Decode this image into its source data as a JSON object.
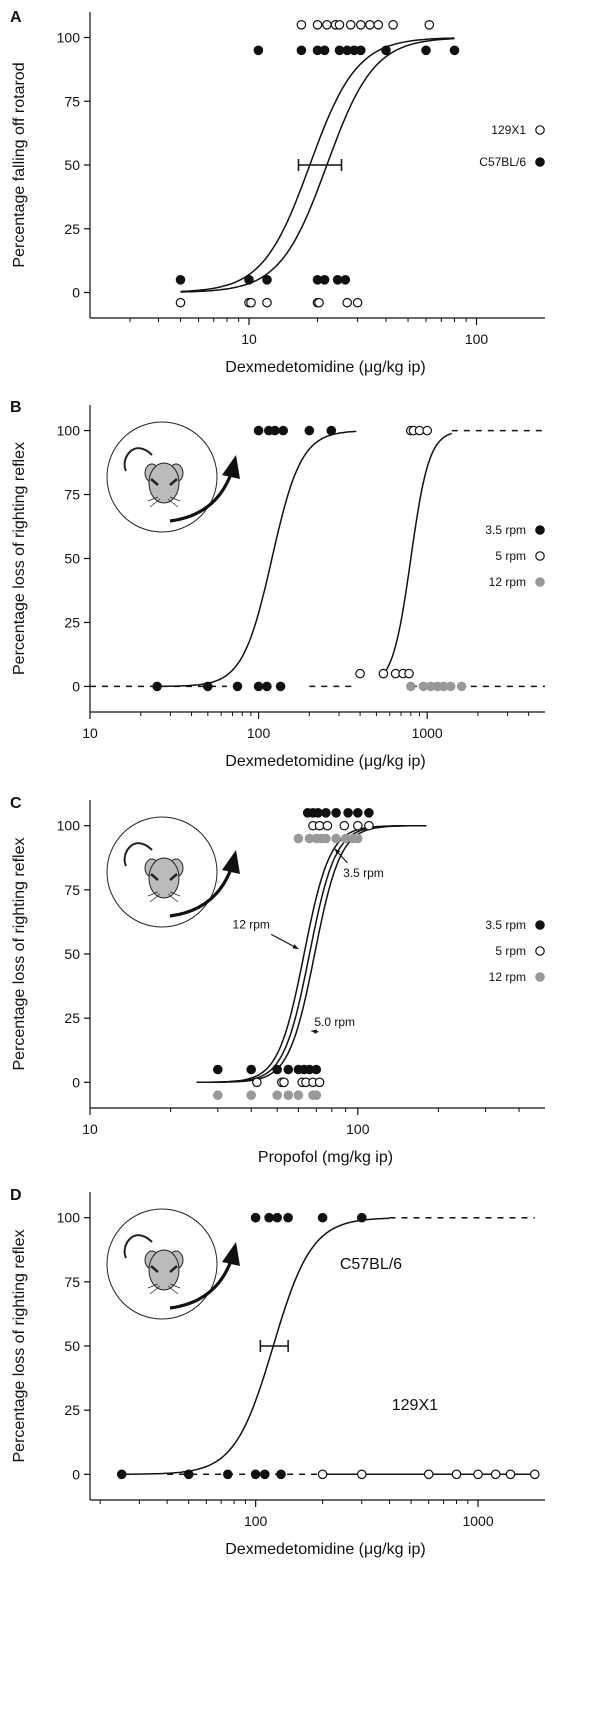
{
  "chart_data": [
    {
      "id": "A",
      "type": "scatter",
      "panel_label": "A",
      "xlabel": "Dexmedetomidine (μg/kg ip)",
      "ylabel": "Percentage falling off rotarod",
      "x_scale": "log",
      "xlim": [
        2,
        200
      ],
      "ylim": [
        -10,
        110
      ],
      "x_ticks": [
        10,
        100
      ],
      "y_ticks": [
        0,
        25,
        50,
        75,
        100
      ],
      "series": [
        {
          "name": "129X1",
          "marker": "open",
          "color": "#111111",
          "points": [
            {
              "x": 5,
              "y": -4
            },
            {
              "x": 10,
              "y": -4
            },
            {
              "x": 10.2,
              "y": -4
            },
            {
              "x": 12,
              "y": -4
            },
            {
              "x": 20,
              "y": -4
            },
            {
              "x": 20.3,
              "y": -4
            },
            {
              "x": 27,
              "y": -4
            },
            {
              "x": 30,
              "y": -4
            },
            {
              "x": 17,
              "y": 105
            },
            {
              "x": 20,
              "y": 105
            },
            {
              "x": 22,
              "y": 105
            },
            {
              "x": 24,
              "y": 105
            },
            {
              "x": 25,
              "y": 105
            },
            {
              "x": 28,
              "y": 105
            },
            {
              "x": 31,
              "y": 105
            },
            {
              "x": 34,
              "y": 105
            },
            {
              "x": 37,
              "y": 105
            },
            {
              "x": 43,
              "y": 105
            },
            {
              "x": 62,
              "y": 105
            }
          ]
        },
        {
          "name": "C57BL/6",
          "marker": "filled",
          "color": "#111111",
          "points": [
            {
              "x": 5,
              "y": 5
            },
            {
              "x": 10,
              "y": 5
            },
            {
              "x": 12,
              "y": 5
            },
            {
              "x": 20,
              "y": 5
            },
            {
              "x": 21.5,
              "y": 5
            },
            {
              "x": 24.5,
              "y": 5
            },
            {
              "x": 26.5,
              "y": 5
            },
            {
              "x": 11,
              "y": 95
            },
            {
              "x": 17,
              "y": 95
            },
            {
              "x": 20,
              "y": 95
            },
            {
              "x": 21.5,
              "y": 95
            },
            {
              "x": 25,
              "y": 95
            },
            {
              "x": 27,
              "y": 95
            },
            {
              "x": 29,
              "y": 95
            },
            {
              "x": 31,
              "y": 95
            },
            {
              "x": 40,
              "y": 95
            },
            {
              "x": 60,
              "y": 95
            },
            {
              "x": 80,
              "y": 95
            }
          ]
        }
      ],
      "curves": [
        {
          "ec50": 18.5,
          "hill": 4.2,
          "x_from": 5,
          "x_to": 80,
          "style": "solid"
        },
        {
          "ec50": 22,
          "hill": 4.2,
          "x_from": 5,
          "x_to": 80,
          "style": "solid"
        }
      ],
      "error_bars": [
        {
          "x_low": 16.5,
          "x_high": 25.5,
          "y": 50
        }
      ],
      "legend": {
        "placement": "right",
        "entries": [
          {
            "label": "129X1",
            "marker": "open"
          },
          {
            "label": "C57BL/6",
            "marker": "filled"
          }
        ]
      },
      "annotations": [],
      "mouse_icon": false
    },
    {
      "id": "B",
      "type": "scatter",
      "panel_label": "B",
      "xlabel": "Dexmedetomidine (μg/kg ip)",
      "ylabel": "Percentage loss of righting reflex",
      "x_scale": "log",
      "xlim": [
        10,
        5000
      ],
      "ylim": [
        -10,
        110
      ],
      "x_ticks": [
        10,
        100,
        1000
      ],
      "y_ticks": [
        0,
        25,
        50,
        75,
        100
      ],
      "series": [
        {
          "name": "3.5 rpm",
          "marker": "filled",
          "color": "#111111",
          "points": [
            {
              "x": 25,
              "y": 0
            },
            {
              "x": 50,
              "y": 0
            },
            {
              "x": 75,
              "y": 0
            },
            {
              "x": 100,
              "y": 0
            },
            {
              "x": 112,
              "y": 0
            },
            {
              "x": 135,
              "y": 0
            },
            {
              "x": 100,
              "y": 100
            },
            {
              "x": 115,
              "y": 100
            },
            {
              "x": 125,
              "y": 100
            },
            {
              "x": 140,
              "y": 100
            },
            {
              "x": 200,
              "y": 100
            },
            {
              "x": 270,
              "y": 100
            }
          ]
        },
        {
          "name": "5 rpm",
          "marker": "open",
          "color": "#111111",
          "points": [
            {
              "x": 400,
              "y": 5
            },
            {
              "x": 550,
              "y": 5
            },
            {
              "x": 650,
              "y": 5
            },
            {
              "x": 720,
              "y": 5
            },
            {
              "x": 780,
              "y": 5
            },
            {
              "x": 800,
              "y": 100
            },
            {
              "x": 830,
              "y": 100
            },
            {
              "x": 900,
              "y": 100
            },
            {
              "x": 1000,
              "y": 100
            }
          ]
        },
        {
          "name": "12 rpm",
          "marker": "filled",
          "color": "#999999",
          "points": [
            {
              "x": 800,
              "y": 0
            },
            {
              "x": 950,
              "y": 0
            },
            {
              "x": 1050,
              "y": 0
            },
            {
              "x": 1150,
              "y": 0
            },
            {
              "x": 1250,
              "y": 0
            },
            {
              "x": 1380,
              "y": 0
            },
            {
              "x": 1600,
              "y": 0
            }
          ]
        }
      ],
      "curves": [
        {
          "ec50": 120,
          "hill": 5,
          "x_from": 25,
          "x_to": 380,
          "style": "solid"
        },
        {
          "ec50": 800,
          "hill": 8,
          "x_from": 560,
          "x_to": 1400,
          "style": "solid"
        },
        {
          "ec50": 0,
          "hill": 0,
          "x_from": 10,
          "x_to": 65,
          "style": "dashed",
          "const": 0
        },
        {
          "ec50": 0,
          "hill": 0,
          "x_from": 200,
          "x_to": 380,
          "style": "dashed",
          "const": 0
        },
        {
          "ec50": 0,
          "hill": 0,
          "x_from": 800,
          "x_to": 5000,
          "style": "dashed",
          "const": 0
        },
        {
          "ec50": 0,
          "hill": 0,
          "x_from": 1400,
          "x_to": 5000,
          "style": "dashed",
          "const": 100
        }
      ],
      "error_bars": [],
      "legend": {
        "placement": "right",
        "entries": [
          {
            "label": "3.5 rpm",
            "marker": "filled"
          },
          {
            "label": "5 rpm",
            "marker": "open"
          },
          {
            "label": "12 rpm",
            "marker": "grey"
          }
        ]
      },
      "annotations": [],
      "mouse_icon": true
    },
    {
      "id": "C",
      "type": "scatter",
      "panel_label": "C",
      "xlabel": "Propofol (mg/kg ip)",
      "ylabel": "Percentage loss of righting reflex",
      "x_scale": "log",
      "xlim": [
        10,
        500
      ],
      "ylim": [
        -10,
        110
      ],
      "x_ticks": [
        10,
        100
      ],
      "y_ticks": [
        0,
        25,
        50,
        75,
        100
      ],
      "series": [
        {
          "name": "3.5 rpm",
          "marker": "filled",
          "color": "#111111",
          "points": [
            {
              "x": 30,
              "y": 5
            },
            {
              "x": 40,
              "y": 5
            },
            {
              "x": 50,
              "y": 5
            },
            {
              "x": 55,
              "y": 5
            },
            {
              "x": 60,
              "y": 5
            },
            {
              "x": 63,
              "y": 5
            },
            {
              "x": 66,
              "y": 5
            },
            {
              "x": 70,
              "y": 5
            },
            {
              "x": 65,
              "y": 105
            },
            {
              "x": 68,
              "y": 105
            },
            {
              "x": 71,
              "y": 105
            },
            {
              "x": 76,
              "y": 105
            },
            {
              "x": 83,
              "y": 105
            },
            {
              "x": 92,
              "y": 105
            },
            {
              "x": 100,
              "y": 105
            },
            {
              "x": 110,
              "y": 105
            }
          ]
        },
        {
          "name": "5 rpm",
          "marker": "open",
          "color": "#111111",
          "points": [
            {
              "x": 42,
              "y": 0
            },
            {
              "x": 52,
              "y": 0
            },
            {
              "x": 53,
              "y": 0
            },
            {
              "x": 62,
              "y": 0
            },
            {
              "x": 64,
              "y": 0
            },
            {
              "x": 68,
              "y": 0
            },
            {
              "x": 72,
              "y": 0
            },
            {
              "x": 68,
              "y": 100
            },
            {
              "x": 72,
              "y": 100
            },
            {
              "x": 77,
              "y": 100
            },
            {
              "x": 89,
              "y": 100
            },
            {
              "x": 100,
              "y": 100
            },
            {
              "x": 110,
              "y": 100
            }
          ]
        },
        {
          "name": "12 rpm",
          "marker": "filled",
          "color": "#999999",
          "points": [
            {
              "x": 30,
              "y": -5
            },
            {
              "x": 40,
              "y": -5
            },
            {
              "x": 50,
              "y": -5
            },
            {
              "x": 55,
              "y": -5
            },
            {
              "x": 60,
              "y": -5
            },
            {
              "x": 68,
              "y": -5
            },
            {
              "x": 70,
              "y": -5
            },
            {
              "x": 60,
              "y": 95
            },
            {
              "x": 66,
              "y": 95
            },
            {
              "x": 70,
              "y": 95
            },
            {
              "x": 73,
              "y": 95
            },
            {
              "x": 76,
              "y": 95
            },
            {
              "x": 83,
              "y": 95
            },
            {
              "x": 90,
              "y": 95
            },
            {
              "x": 96,
              "y": 95
            },
            {
              "x": 100,
              "y": 95
            }
          ]
        }
      ],
      "curves": [
        {
          "ec50": 63,
          "hill": 9,
          "x_from": 25,
          "x_to": 180,
          "style": "solid"
        },
        {
          "ec50": 66,
          "hill": 9,
          "x_from": 25,
          "x_to": 180,
          "style": "solid"
        },
        {
          "ec50": 69,
          "hill": 9,
          "x_from": 25,
          "x_to": 180,
          "style": "solid"
        }
      ],
      "error_bars": [],
      "legend": {
        "placement": "right",
        "entries": [
          {
            "label": "3.5 rpm",
            "marker": "filled"
          },
          {
            "label": "5 rpm",
            "marker": "open"
          },
          {
            "label": "12 rpm",
            "marker": "grey"
          }
        ]
      },
      "annotations": [
        {
          "text": "3.5 rpm",
          "x": 105,
          "y": 80,
          "arrow_to_x": 82,
          "arrow_to_y": 91
        },
        {
          "text": "12 rpm",
          "x": 40,
          "y": 60,
          "arrow_to_x": 60,
          "arrow_to_y": 52
        },
        {
          "text": "5.0 rpm",
          "x": 82,
          "y": 22,
          "arrow_to_x": 67,
          "arrow_to_y": 20
        }
      ],
      "mouse_icon": true
    },
    {
      "id": "D",
      "type": "scatter",
      "panel_label": "D",
      "xlabel": "Dexmedetomidine (μg/kg ip)",
      "ylabel": "Percentage loss of righting reflex",
      "x_scale": "log",
      "xlim": [
        18,
        2000
      ],
      "ylim": [
        -10,
        110
      ],
      "x_ticks": [
        100,
        1000
      ],
      "y_ticks": [
        0,
        25,
        50,
        75,
        100
      ],
      "series": [
        {
          "name": "C57BL/6",
          "marker": "filled",
          "color": "#111111",
          "points": [
            {
              "x": 25,
              "y": 0
            },
            {
              "x": 50,
              "y": 0
            },
            {
              "x": 75,
              "y": 0
            },
            {
              "x": 100,
              "y": 0
            },
            {
              "x": 110,
              "y": 0
            },
            {
              "x": 130,
              "y": 0
            },
            {
              "x": 100,
              "y": 100
            },
            {
              "x": 115,
              "y": 100
            },
            {
              "x": 125,
              "y": 100
            },
            {
              "x": 140,
              "y": 100
            },
            {
              "x": 200,
              "y": 100
            },
            {
              "x": 300,
              "y": 100
            }
          ]
        },
        {
          "name": "129X1",
          "marker": "open",
          "color": "#111111",
          "points": [
            {
              "x": 200,
              "y": 0
            },
            {
              "x": 300,
              "y": 0
            },
            {
              "x": 600,
              "y": 0
            },
            {
              "x": 800,
              "y": 0
            },
            {
              "x": 1000,
              "y": 0
            },
            {
              "x": 1200,
              "y": 0
            },
            {
              "x": 1400,
              "y": 0
            },
            {
              "x": 1800,
              "y": 0
            }
          ]
        }
      ],
      "curves": [
        {
          "ec50": 120,
          "hill": 5,
          "x_from": 25,
          "x_to": 400,
          "style": "solid"
        },
        {
          "ec50": 0,
          "hill": 0,
          "x_from": 40,
          "x_to": 200,
          "style": "dashed",
          "const": 0
        },
        {
          "ec50": 0,
          "hill": 0,
          "x_from": 200,
          "x_to": 1800,
          "style": "solid",
          "const": 0
        },
        {
          "ec50": 0,
          "hill": 0,
          "x_from": 400,
          "x_to": 1800,
          "style": "dashed",
          "const": 100
        }
      ],
      "error_bars": [
        {
          "x_low": 105,
          "x_high": 140,
          "y": 50
        }
      ],
      "legend": {
        "placement": "none",
        "entries": []
      },
      "annotations": [
        {
          "text": "C57BL/6",
          "x": 330,
          "y": 80,
          "big": true
        },
        {
          "text": "129X1",
          "x": 520,
          "y": 25,
          "big": true
        }
      ],
      "mouse_icon": true
    }
  ]
}
